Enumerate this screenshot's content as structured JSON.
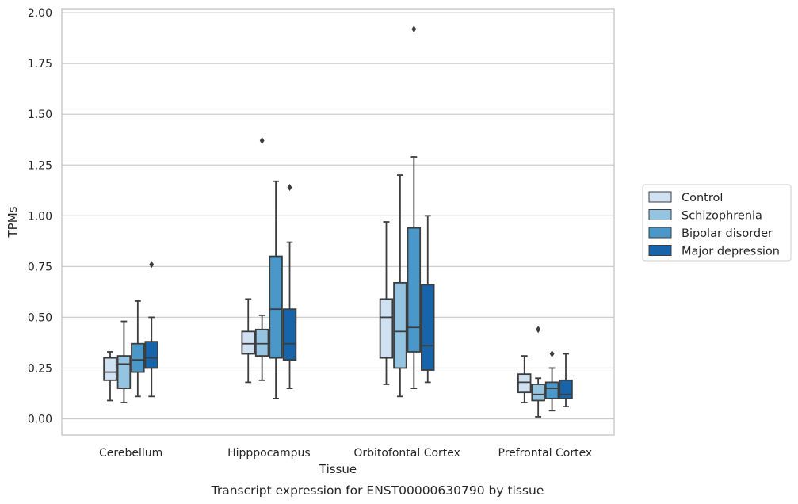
{
  "chart_data": {
    "type": "box",
    "xlabel": "Tissue",
    "ylabel": "TPMs",
    "caption": "Transcript expression for ENST00000630790 by tissue",
    "ylim": [
      -0.08,
      2.02
    ],
    "yticks": [
      "0.00",
      "0.25",
      "0.50",
      "0.75",
      "1.00",
      "1.25",
      "1.50",
      "1.75",
      "2.00"
    ],
    "grid": "horizontal",
    "legend_position": "right",
    "categories": [
      "Cerebellum",
      "Hipppocampus",
      "Orbitofontal Cortex",
      "Prefrontal Cortex"
    ],
    "series": [
      {
        "name": "Control",
        "color": "#d0e1f2",
        "boxes": [
          {
            "whislo": 0.09,
            "q1": 0.19,
            "med": 0.23,
            "q3": 0.3,
            "whishi": 0.33,
            "fliers": []
          },
          {
            "whislo": 0.18,
            "q1": 0.32,
            "med": 0.37,
            "q3": 0.43,
            "whishi": 0.59,
            "fliers": []
          },
          {
            "whislo": 0.17,
            "q1": 0.3,
            "med": 0.5,
            "q3": 0.59,
            "whishi": 0.97,
            "fliers": []
          },
          {
            "whislo": 0.08,
            "q1": 0.13,
            "med": 0.18,
            "q3": 0.22,
            "whishi": 0.31,
            "fliers": []
          }
        ]
      },
      {
        "name": "Schizophrenia",
        "color": "#94c4df",
        "boxes": [
          {
            "whislo": 0.08,
            "q1": 0.15,
            "med": 0.27,
            "q3": 0.31,
            "whishi": 0.48,
            "fliers": []
          },
          {
            "whislo": 0.19,
            "q1": 0.31,
            "med": 0.37,
            "q3": 0.44,
            "whishi": 0.51,
            "fliers": [
              1.37
            ]
          },
          {
            "whislo": 0.11,
            "q1": 0.25,
            "med": 0.43,
            "q3": 0.67,
            "whishi": 1.2,
            "fliers": []
          },
          {
            "whislo": 0.01,
            "q1": 0.09,
            "med": 0.12,
            "q3": 0.17,
            "whishi": 0.2,
            "fliers": [
              0.44
            ]
          }
        ]
      },
      {
        "name": "Bipolar disorder",
        "color": "#4a98c9",
        "boxes": [
          {
            "whislo": 0.11,
            "q1": 0.23,
            "med": 0.29,
            "q3": 0.37,
            "whishi": 0.58,
            "fliers": []
          },
          {
            "whislo": 0.1,
            "q1": 0.3,
            "med": 0.54,
            "q3": 0.8,
            "whishi": 1.17,
            "fliers": []
          },
          {
            "whislo": 0.15,
            "q1": 0.33,
            "med": 0.45,
            "q3": 0.94,
            "whishi": 1.29,
            "fliers": [
              1.92
            ]
          },
          {
            "whislo": 0.04,
            "q1": 0.1,
            "med": 0.15,
            "q3": 0.18,
            "whishi": 0.25,
            "fliers": [
              0.32
            ]
          }
        ]
      },
      {
        "name": "Major depression",
        "color": "#1764ab",
        "boxes": [
          {
            "whislo": 0.11,
            "q1": 0.25,
            "med": 0.3,
            "q3": 0.38,
            "whishi": 0.5,
            "fliers": [
              0.76
            ]
          },
          {
            "whislo": 0.15,
            "q1": 0.29,
            "med": 0.37,
            "q3": 0.54,
            "whishi": 0.87,
            "fliers": [
              1.14
            ]
          },
          {
            "whislo": 0.18,
            "q1": 0.24,
            "med": 0.36,
            "q3": 0.66,
            "whishi": 1.0,
            "fliers": []
          },
          {
            "whislo": 0.06,
            "q1": 0.1,
            "med": 0.12,
            "q3": 0.19,
            "whishi": 0.32,
            "fliers": []
          }
        ]
      }
    ]
  }
}
